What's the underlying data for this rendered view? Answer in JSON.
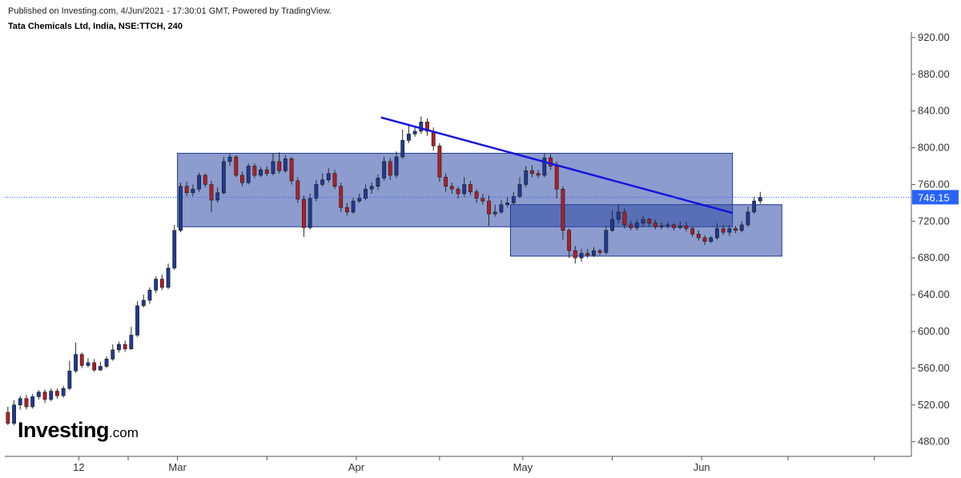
{
  "header": {
    "published_line": "Published on Investing.com, 4/Jun/2021 - 17:30:01 GMT, Powered by TradingView.",
    "symbol_line": "Tata Chemicals Ltd, India, NSE:TTCH, 240"
  },
  "logo": {
    "main": "Investing",
    "suffix": ".com"
  },
  "colors": {
    "up_candle": "#1f3a93",
    "down_candle": "#b01f24",
    "zone_fill": "#2d4aa6",
    "trendline": "#1515dd",
    "price_label_bg": "#2962ff",
    "axis": "#555555"
  },
  "chart_data": {
    "type": "candlestick",
    "yaxis": {
      "side": "right",
      "ticks": [
        "920.00",
        "880.00",
        "840.00",
        "800.00",
        "760.00",
        "720.00",
        "680.00",
        "640.00",
        "600.00",
        "560.00",
        "520.00",
        "480.00"
      ],
      "ylim": [
        464,
        926
      ]
    },
    "xaxis": {
      "labels": [
        {
          "label": "12",
          "index": 12
        },
        {
          "label": "Mar",
          "index": 28
        },
        {
          "label": "Apr",
          "index": 57
        },
        {
          "label": "May",
          "index": 84
        },
        {
          "label": "Jun",
          "index": 113
        }
      ],
      "xlim": [
        0,
        147
      ]
    },
    "last_price": {
      "value": 746.15,
      "label": "746.15"
    },
    "candles": [
      [
        512,
        500,
        518,
        498
      ],
      [
        500,
        520,
        525,
        498
      ],
      [
        520,
        527,
        530,
        515
      ],
      [
        527,
        518,
        531,
        515
      ],
      [
        518,
        529,
        532,
        516
      ],
      [
        529,
        534,
        536,
        526
      ],
      [
        534,
        526,
        537,
        522
      ],
      [
        526,
        535,
        538,
        524
      ],
      [
        535,
        530,
        538,
        527
      ],
      [
        530,
        538,
        541,
        528
      ],
      [
        538,
        557,
        568,
        536
      ],
      [
        557,
        575,
        588,
        555
      ],
      [
        575,
        563,
        577,
        560
      ],
      [
        563,
        566,
        571,
        561
      ],
      [
        566,
        558,
        570,
        556
      ],
      [
        558,
        562,
        567,
        557
      ],
      [
        562,
        570,
        573,
        560
      ],
      [
        570,
        580,
        586,
        568
      ],
      [
        580,
        586,
        589,
        577
      ],
      [
        586,
        581,
        590,
        578
      ],
      [
        581,
        596,
        605,
        580
      ],
      [
        596,
        628,
        633,
        594
      ],
      [
        628,
        634,
        640,
        626
      ],
      [
        634,
        645,
        648,
        630
      ],
      [
        645,
        657,
        660,
        642
      ],
      [
        657,
        648,
        662,
        645
      ],
      [
        648,
        669,
        674,
        646
      ],
      [
        669,
        710,
        716,
        667
      ],
      [
        710,
        758,
        762,
        708
      ],
      [
        758,
        751,
        763,
        747
      ],
      [
        751,
        755,
        760,
        747
      ],
      [
        755,
        770,
        773,
        752
      ],
      [
        770,
        760,
        772,
        757
      ],
      [
        760,
        743,
        764,
        730
      ],
      [
        743,
        751,
        757,
        740
      ],
      [
        751,
        785,
        790,
        749
      ],
      [
        785,
        790,
        794,
        780
      ],
      [
        790,
        770,
        792,
        768
      ],
      [
        770,
        762,
        774,
        758
      ],
      [
        762,
        780,
        783,
        760
      ],
      [
        780,
        770,
        783,
        767
      ],
      [
        770,
        776,
        779,
        768
      ],
      [
        776,
        772,
        780,
        769
      ],
      [
        772,
        785,
        794,
        770
      ],
      [
        785,
        775,
        795,
        772
      ],
      [
        775,
        788,
        792,
        773
      ],
      [
        788,
        764,
        790,
        760
      ],
      [
        764,
        744,
        768,
        740
      ],
      [
        744,
        713,
        748,
        703
      ],
      [
        713,
        745,
        750,
        711
      ],
      [
        745,
        760,
        765,
        742
      ],
      [
        760,
        765,
        772,
        758
      ],
      [
        765,
        772,
        778,
        762
      ],
      [
        772,
        758,
        776,
        755
      ],
      [
        758,
        735,
        762,
        730
      ],
      [
        735,
        730,
        740,
        726
      ],
      [
        730,
        742,
        746,
        728
      ],
      [
        742,
        745,
        750,
        740
      ],
      [
        745,
        755,
        760,
        743
      ],
      [
        755,
        758,
        762,
        750
      ],
      [
        758,
        767,
        771,
        754
      ],
      [
        767,
        785,
        790,
        764
      ],
      [
        785,
        770,
        789,
        765
      ],
      [
        770,
        790,
        796,
        767
      ],
      [
        790,
        808,
        820,
        788
      ],
      [
        808,
        815,
        826,
        805
      ],
      [
        815,
        818,
        823,
        812
      ],
      [
        818,
        828,
        834,
        815
      ],
      [
        828,
        818,
        832,
        813
      ],
      [
        818,
        802,
        822,
        797
      ],
      [
        802,
        768,
        805,
        763
      ],
      [
        768,
        758,
        772,
        752
      ],
      [
        758,
        755,
        762,
        750
      ],
      [
        755,
        750,
        758,
        745
      ],
      [
        750,
        760,
        768,
        746
      ],
      [
        760,
        752,
        764,
        748
      ],
      [
        752,
        745,
        755,
        740
      ],
      [
        745,
        742,
        750,
        738
      ],
      [
        742,
        728,
        748,
        715
      ],
      [
        728,
        730,
        738,
        725
      ],
      [
        730,
        738,
        743,
        728
      ],
      [
        738,
        740,
        747,
        735
      ],
      [
        740,
        747,
        752,
        738
      ],
      [
        747,
        760,
        768,
        745
      ],
      [
        760,
        775,
        780,
        757
      ],
      [
        775,
        772,
        781,
        768
      ],
      [
        772,
        770,
        776,
        767
      ],
      [
        770,
        789,
        794,
        768
      ],
      [
        789,
        780,
        793,
        776
      ],
      [
        780,
        755,
        785,
        745
      ],
      [
        755,
        710,
        758,
        700
      ],
      [
        710,
        688,
        712,
        680
      ],
      [
        688,
        680,
        693,
        674
      ],
      [
        680,
        685,
        690,
        676
      ],
      [
        685,
        683,
        690,
        680
      ],
      [
        683,
        688,
        692,
        681
      ],
      [
        688,
        686,
        690,
        683
      ],
      [
        686,
        710,
        715,
        684
      ],
      [
        710,
        722,
        732,
        708
      ],
      [
        722,
        730,
        738,
        718
      ],
      [
        730,
        716,
        734,
        712
      ],
      [
        716,
        713,
        720,
        710
      ],
      [
        713,
        718,
        722,
        710
      ],
      [
        718,
        722,
        726,
        714
      ],
      [
        722,
        718,
        724,
        714
      ],
      [
        718,
        714,
        722,
        711
      ],
      [
        714,
        715,
        719,
        711
      ],
      [
        715,
        716,
        719,
        712
      ],
      [
        716,
        713,
        718,
        710
      ],
      [
        713,
        715,
        720,
        711
      ],
      [
        715,
        712,
        719,
        709
      ],
      [
        712,
        706,
        714,
        703
      ],
      [
        706,
        702,
        710,
        699
      ],
      [
        702,
        698,
        705,
        694
      ],
      [
        698,
        702,
        704,
        696
      ],
      [
        702,
        712,
        718,
        700
      ],
      [
        712,
        708,
        716,
        705
      ],
      [
        708,
        712,
        716,
        704
      ],
      [
        712,
        710,
        715,
        707
      ],
      [
        710,
        716,
        720,
        708
      ],
      [
        716,
        730,
        736,
        714
      ],
      [
        730,
        742,
        746,
        728
      ],
      [
        742,
        746,
        752,
        739
      ]
    ],
    "zones": [
      {
        "x_start": 28,
        "x_end": 118,
        "y_low": 714,
        "y_high": 794
      },
      {
        "x_start": 82,
        "x_end": 126,
        "y_low": 682,
        "y_high": 738
      }
    ],
    "trendline": {
      "x1": 61,
      "y1": 833,
      "x2": 118,
      "y2": 729
    }
  }
}
